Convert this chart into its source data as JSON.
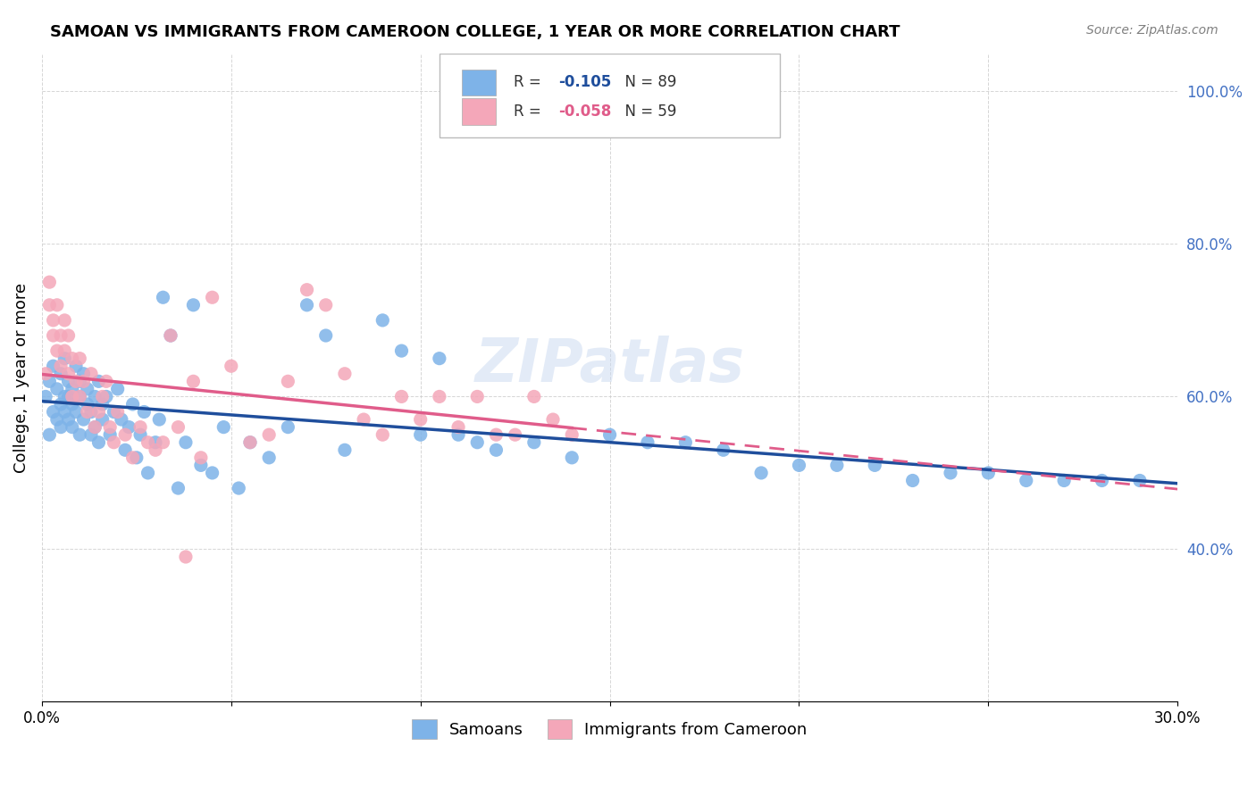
{
  "title": "SAMOAN VS IMMIGRANTS FROM CAMEROON COLLEGE, 1 YEAR OR MORE CORRELATION CHART",
  "source": "Source: ZipAtlas.com",
  "xlabel": "",
  "ylabel": "College, 1 year or more",
  "xlim": [
    0.0,
    0.3
  ],
  "ylim": [
    0.2,
    1.05
  ],
  "yticks": [
    0.4,
    0.6,
    0.8,
    1.0
  ],
  "ytick_labels": [
    "40.0%",
    "60.0%",
    "80.0%",
    "100.0%"
  ],
  "xticks": [
    0.0,
    0.05,
    0.1,
    0.15,
    0.2,
    0.25,
    0.3
  ],
  "xtick_labels": [
    "0.0%",
    "",
    "",
    "",
    "",
    "",
    "30.0%"
  ],
  "blue_R": -0.105,
  "blue_N": 89,
  "pink_R": -0.058,
  "pink_N": 59,
  "blue_color": "#7EB3E8",
  "pink_color": "#F4A7B9",
  "blue_line_color": "#1F4E9C",
  "pink_line_color": "#E05C8A",
  "watermark": "ZIPatlas",
  "blue_scatter_x": [
    0.001,
    0.002,
    0.002,
    0.003,
    0.003,
    0.004,
    0.004,
    0.005,
    0.005,
    0.005,
    0.006,
    0.006,
    0.006,
    0.007,
    0.007,
    0.007,
    0.008,
    0.008,
    0.008,
    0.009,
    0.009,
    0.01,
    0.01,
    0.01,
    0.011,
    0.011,
    0.012,
    0.012,
    0.013,
    0.013,
    0.014,
    0.014,
    0.015,
    0.015,
    0.016,
    0.016,
    0.017,
    0.018,
    0.019,
    0.02,
    0.021,
    0.022,
    0.023,
    0.024,
    0.025,
    0.026,
    0.027,
    0.028,
    0.03,
    0.031,
    0.032,
    0.034,
    0.036,
    0.038,
    0.04,
    0.042,
    0.045,
    0.048,
    0.052,
    0.055,
    0.06,
    0.065,
    0.07,
    0.075,
    0.08,
    0.09,
    0.095,
    0.1,
    0.105,
    0.11,
    0.115,
    0.12,
    0.13,
    0.14,
    0.15,
    0.16,
    0.17,
    0.18,
    0.19,
    0.2,
    0.21,
    0.22,
    0.23,
    0.24,
    0.25,
    0.26,
    0.27,
    0.28,
    0.29
  ],
  "blue_scatter_y": [
    0.6,
    0.55,
    0.62,
    0.58,
    0.64,
    0.57,
    0.61,
    0.59,
    0.63,
    0.56,
    0.6,
    0.65,
    0.58,
    0.62,
    0.57,
    0.6,
    0.61,
    0.56,
    0.59,
    0.64,
    0.58,
    0.62,
    0.55,
    0.6,
    0.63,
    0.57,
    0.59,
    0.61,
    0.58,
    0.55,
    0.6,
    0.56,
    0.62,
    0.54,
    0.59,
    0.57,
    0.6,
    0.55,
    0.58,
    0.61,
    0.57,
    0.53,
    0.56,
    0.59,
    0.52,
    0.55,
    0.58,
    0.5,
    0.54,
    0.57,
    0.73,
    0.68,
    0.48,
    0.54,
    0.72,
    0.51,
    0.5,
    0.56,
    0.48,
    0.54,
    0.52,
    0.56,
    0.72,
    0.68,
    0.53,
    0.7,
    0.66,
    0.55,
    0.65,
    0.55,
    0.54,
    0.53,
    0.54,
    0.52,
    0.55,
    0.54,
    0.54,
    0.53,
    0.5,
    0.51,
    0.51,
    0.51,
    0.49,
    0.5,
    0.5,
    0.49,
    0.49,
    0.49,
    0.49
  ],
  "pink_scatter_x": [
    0.001,
    0.002,
    0.002,
    0.003,
    0.003,
    0.004,
    0.004,
    0.005,
    0.005,
    0.006,
    0.006,
    0.007,
    0.007,
    0.008,
    0.008,
    0.009,
    0.01,
    0.01,
    0.011,
    0.012,
    0.013,
    0.014,
    0.015,
    0.016,
    0.017,
    0.018,
    0.019,
    0.02,
    0.022,
    0.024,
    0.026,
    0.028,
    0.03,
    0.032,
    0.034,
    0.036,
    0.038,
    0.04,
    0.042,
    0.045,
    0.05,
    0.055,
    0.06,
    0.065,
    0.07,
    0.075,
    0.08,
    0.085,
    0.09,
    0.095,
    0.1,
    0.105,
    0.11,
    0.115,
    0.12,
    0.125,
    0.13,
    0.135,
    0.14
  ],
  "pink_scatter_y": [
    0.63,
    0.75,
    0.72,
    0.7,
    0.68,
    0.72,
    0.66,
    0.64,
    0.68,
    0.7,
    0.66,
    0.68,
    0.63,
    0.65,
    0.6,
    0.62,
    0.65,
    0.6,
    0.62,
    0.58,
    0.63,
    0.56,
    0.58,
    0.6,
    0.62,
    0.56,
    0.54,
    0.58,
    0.55,
    0.52,
    0.56,
    0.54,
    0.53,
    0.54,
    0.68,
    0.56,
    0.39,
    0.62,
    0.52,
    0.73,
    0.64,
    0.54,
    0.55,
    0.62,
    0.74,
    0.72,
    0.63,
    0.57,
    0.55,
    0.6,
    0.57,
    0.6,
    0.56,
    0.6,
    0.55,
    0.55,
    0.6,
    0.57,
    0.55
  ]
}
